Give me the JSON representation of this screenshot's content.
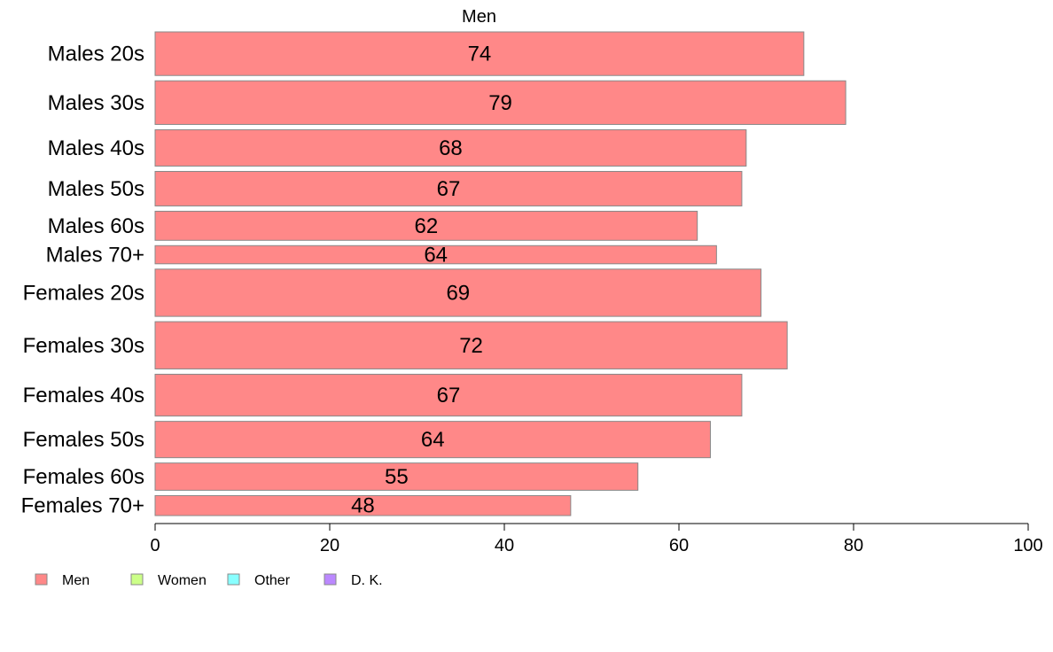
{
  "chart_data": {
    "type": "bar",
    "orientation": "horizontal",
    "title": "Men",
    "xlabel": "",
    "ylabel": "",
    "xlim": [
      0,
      100
    ],
    "xticks": [
      0,
      20,
      40,
      60,
      80,
      100
    ],
    "grid": false,
    "legend_position": "bottom-left",
    "categories": [
      "Males 20s",
      "Males 30s",
      "Males 40s",
      "Males 50s",
      "Males 60s",
      "Males 70+",
      "Females 20s",
      "Females 30s",
      "Females 40s",
      "Females 50s",
      "Females 60s",
      "Females 70+"
    ],
    "series": [
      {
        "name": "Men",
        "color": "#FF8888",
        "values": [
          74.3,
          79.1,
          67.7,
          67.2,
          62.1,
          64.3,
          69.4,
          72.4,
          67.2,
          63.6,
          55.3,
          47.6
        ],
        "value_labels": [
          "74",
          "79",
          "68",
          "67",
          "62",
          "64",
          "69",
          "72",
          "67",
          "64",
          "55",
          "48"
        ]
      }
    ],
    "bar_weights": [
      48,
      48,
      40,
      38,
      32,
      20,
      52,
      52,
      46,
      40,
      30,
      22
    ],
    "legend": [
      {
        "label": "Men",
        "color": "#FF8888"
      },
      {
        "label": "Women",
        "color": "#CCFF88"
      },
      {
        "label": "Other",
        "color": "#88FFFF"
      },
      {
        "label": "D. K.",
        "color": "#BB88FF"
      }
    ]
  }
}
